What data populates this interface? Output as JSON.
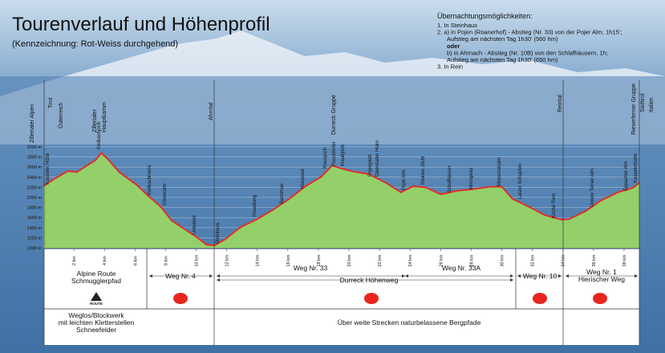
{
  "header": {
    "title": "Tourenverlauf und Höhenprofil",
    "subtitle": "(Kennzeichnung: Rot-Weiss durchgehend)"
  },
  "notes": {
    "heading": "Übernachtungsmöglichkeiten:",
    "items": [
      "1.  In Steinhaus",
      "2.  a) in Pojen (Roanerhof) - Abstieg (Nr. 33) von der Pojer Alm, 1h15';",
      "Aufstieg am nächsten Tag 1h30' (560 hm)",
      "oder",
      "b) in Ahrnach - Abstieg (Nr. 10B) von den Schlafhäusern, 1h;",
      "Aufstieg am nächsten Tag 1h30' (650 hm)",
      "3.  In Rein"
    ]
  },
  "regions": [
    "Zillertaler Alpen",
    "Tirol",
    "Österreich",
    "Zillertaler",
    "Hauptkamm",
    "Ahrntal",
    "Durreck Gruppe",
    "Reintal",
    "Rieserferner Gruppe",
    "Südtirol",
    "Italien"
  ],
  "places": [
    "Kasseler Hütte",
    "Keilbachjoch",
    "Keilbachmoos",
    "Gösleralm",
    "Unterkeil",
    "Steinhaus",
    "Klausberg",
    "Bachmair",
    "Klaussee",
    "Klausjoch",
    "Rauchkofel",
    "Klaußjoch",
    "Pojenplatz",
    "Oberstaller Holm",
    "Pojer Alm",
    "Kleines Jöchl",
    "Schafhäuser",
    "Moosplatz",
    "Moosmairalm",
    "Latzer Schupfen",
    "Kirche Rein",
    "Untere Temer Alm",
    "Eppacher Alm",
    "Kasselerhütte"
  ],
  "routes": [
    "Alpine Route",
    "Schmugglerpfad",
    "Weg Nr. 4",
    "Weg Nr. 33",
    "Durreck Höhenweg",
    "Weg Nr. 33A",
    "Weg Nr. 10",
    "Weg Nr. 1",
    "Hierischer Weg"
  ],
  "icon_label": "ROUTE",
  "terrain": [
    "Weglos/Blockwerk",
    "mit leichten Kletterstellen",
    "Schneefelder",
    "Über weite Strecken naturbelassene Bergpfade"
  ],
  "chart_data": {
    "type": "area",
    "x": [
      0,
      0.8,
      1.6,
      2.2,
      2.7,
      3.4,
      3.8,
      4.2,
      5.0,
      6.1,
      6.9,
      7.7,
      8.4,
      9.2,
      10.0,
      10.7,
      11.2,
      11.9,
      12.9,
      14.0,
      15.0,
      16.1,
      17.1,
      18.2,
      18.9,
      19.5,
      20.3,
      21.3,
      22.4,
      23.4,
      24.2,
      25.0,
      26.0,
      27.1,
      28.1,
      29.2,
      30.0,
      30.7,
      31.8,
      32.8,
      33.9,
      34.4,
      35.5,
      36.5,
      37.6,
      38.6,
      39.0
    ],
    "values": [
      2220,
      2380,
      2520,
      2500,
      2600,
      2730,
      2880,
      2760,
      2490,
      2250,
      2020,
      1810,
      1540,
      1380,
      1220,
      1060,
      1050,
      1170,
      1410,
      1570,
      1750,
      1970,
      2210,
      2410,
      2630,
      2570,
      2510,
      2460,
      2290,
      2100,
      2220,
      2200,
      2060,
      2130,
      2160,
      2210,
      2210,
      1970,
      1810,
      1650,
      1560,
      1570,
      1730,
      1940,
      2100,
      2190,
      2290
    ],
    "color": "#93d06a",
    "line_color": "#e0302a",
    "xlim": [
      0,
      39
    ],
    "ylim": [
      1000,
      3000
    ],
    "yticks": [
      {
        "value": 1000,
        "label": "1000 m"
      },
      {
        "value": 1200,
        "label": "1200 m"
      },
      {
        "value": 1400,
        "label": "1400 m"
      },
      {
        "value": 1600,
        "label": "1600 m"
      },
      {
        "value": 1800,
        "label": "1800 m"
      },
      {
        "value": 2000,
        "label": "2000 m"
      },
      {
        "value": 2200,
        "label": "2200 m"
      },
      {
        "value": 2400,
        "label": "2400 m"
      },
      {
        "value": 2600,
        "label": "2600 m"
      },
      {
        "value": 2800,
        "label": "2800 m"
      },
      {
        "value": 3000,
        "label": "3000 m"
      }
    ],
    "xticks": [
      {
        "value": 2,
        "label": "2 km"
      },
      {
        "value": 4,
        "label": "4 km"
      },
      {
        "value": 6,
        "label": "6 km"
      },
      {
        "value": 8,
        "label": "8 km"
      },
      {
        "value": 10,
        "label": "10 km"
      },
      {
        "value": 12,
        "label": "12 km"
      },
      {
        "value": 14,
        "label": "14 km"
      },
      {
        "value": 16,
        "label": "16 km"
      },
      {
        "value": 18,
        "label": "18 km"
      },
      {
        "value": 20,
        "label": "20 km"
      },
      {
        "value": 22,
        "label": "22 km"
      },
      {
        "value": 24,
        "label": "24 km"
      },
      {
        "value": 26,
        "label": "26 km"
      },
      {
        "value": 28,
        "label": "28 km"
      },
      {
        "value": 30,
        "label": "30 km"
      },
      {
        "value": 32,
        "label": "32 km"
      },
      {
        "value": 34,
        "label": "34 km"
      },
      {
        "value": 36,
        "label": "36 km"
      },
      {
        "value": 38,
        "label": "38 km"
      }
    ],
    "grid": true
  }
}
